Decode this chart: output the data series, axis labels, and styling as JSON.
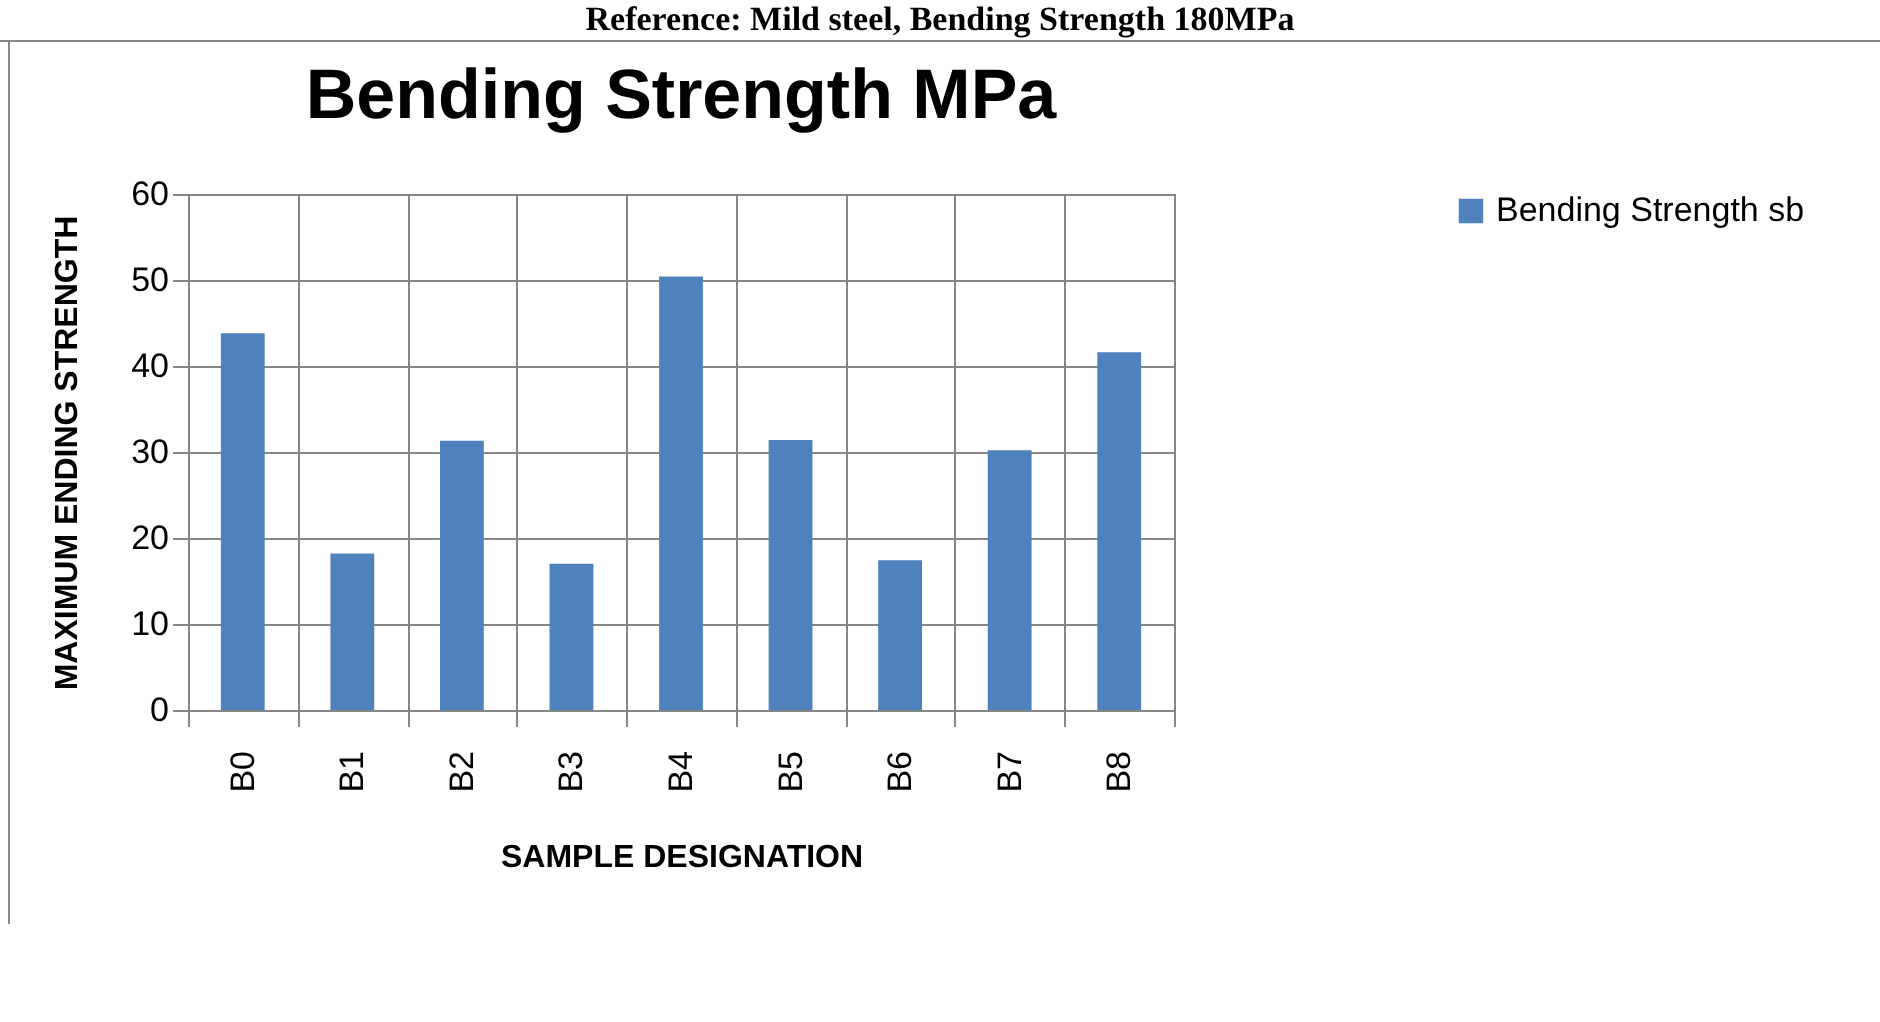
{
  "chart_data": {
    "type": "bar",
    "title": "Bending Strength MPa",
    "xlabel": "SAMPLE DESIGNATION",
    "ylabel": "MAXIMUM ENDING STRENGTH",
    "annotations": [
      "Reference: Mild steel, Bending Strength 180MPa"
    ],
    "categories": [
      "B0",
      "B1",
      "B2",
      "B3",
      "B4",
      "B5",
      "B6",
      "B7",
      "B8"
    ],
    "series": [
      {
        "name": "Bending Strength sb",
        "color": "#4f81bd",
        "values": [
          43.8,
          18.2,
          31.3,
          17.0,
          50.4,
          31.4,
          17.4,
          30.2,
          41.6
        ]
      }
    ],
    "ylim": [
      0,
      60
    ],
    "yticks": [
      0,
      10,
      20,
      30,
      40,
      50,
      60
    ],
    "grid": true,
    "legend": "right"
  }
}
